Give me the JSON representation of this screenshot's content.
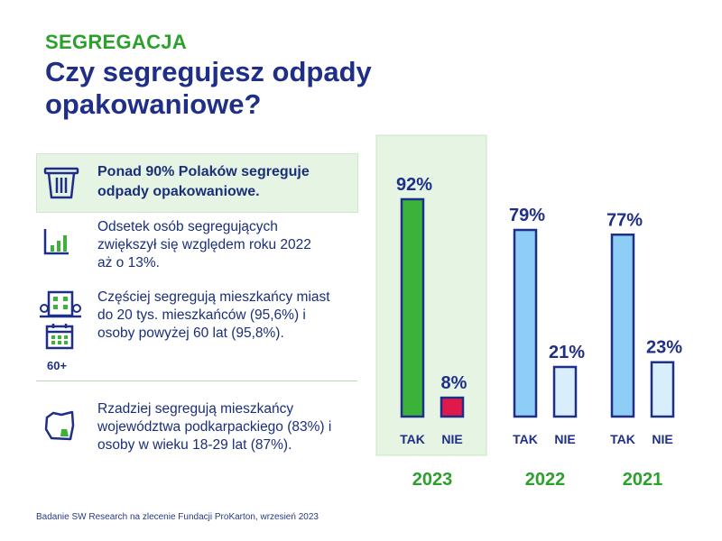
{
  "header": {
    "kicker": "SEGREGACJA",
    "title": "Czy segregujesz odpady opakowaniowe?"
  },
  "facts": [
    {
      "icon": "trash-bin-icon",
      "text": "Ponad 90% Polaków segreguje odpady opakowaniowe."
    },
    {
      "icon": "bar-chart-icon",
      "text": "Odsetek osób segregujących zwiększył się względem roku 2022 aż o 13%."
    },
    {
      "icon": "city-buildings-icon",
      "text": "Częściej segregują mieszkańcy miast do 20 tys. mieszkańców (95,6%) i osoby powyżej 60 lat (95,8%)."
    },
    {
      "icon": "calendar-icon",
      "text": "60+"
    },
    {
      "icon": "region-map-icon",
      "text": "Rzadziej segregują mieszkańcy województwa podkarpackiego (83%) i osoby w wieku 18-29 lat (87%)."
    }
  ],
  "source": "Badanie SW Research na zlecenie Fundacji ProKarton, wrzesień 2023",
  "colors": {
    "navy": "#1f2f88",
    "green": "#2ca02c",
    "green_fill": "#3bb33b",
    "red_fill": "#e0194b",
    "blue_fill": "#8ecdf5",
    "light_fill": "#d9eefb",
    "highlight_bg": "#e6f4e4"
  },
  "chart_data": {
    "type": "bar",
    "ylim": [
      0,
      100
    ],
    "value_suffix": "%",
    "groups": [
      {
        "year": "2023",
        "categories": [
          "TAK",
          "NIE"
        ],
        "values": [
          92,
          8
        ],
        "highlighted": true
      },
      {
        "year": "2022",
        "categories": [
          "TAK",
          "NIE"
        ],
        "values": [
          79,
          21
        ],
        "highlighted": false
      },
      {
        "year": "2021",
        "categories": [
          "TAK",
          "NIE"
        ],
        "values": [
          77,
          23
        ],
        "highlighted": false
      }
    ]
  }
}
